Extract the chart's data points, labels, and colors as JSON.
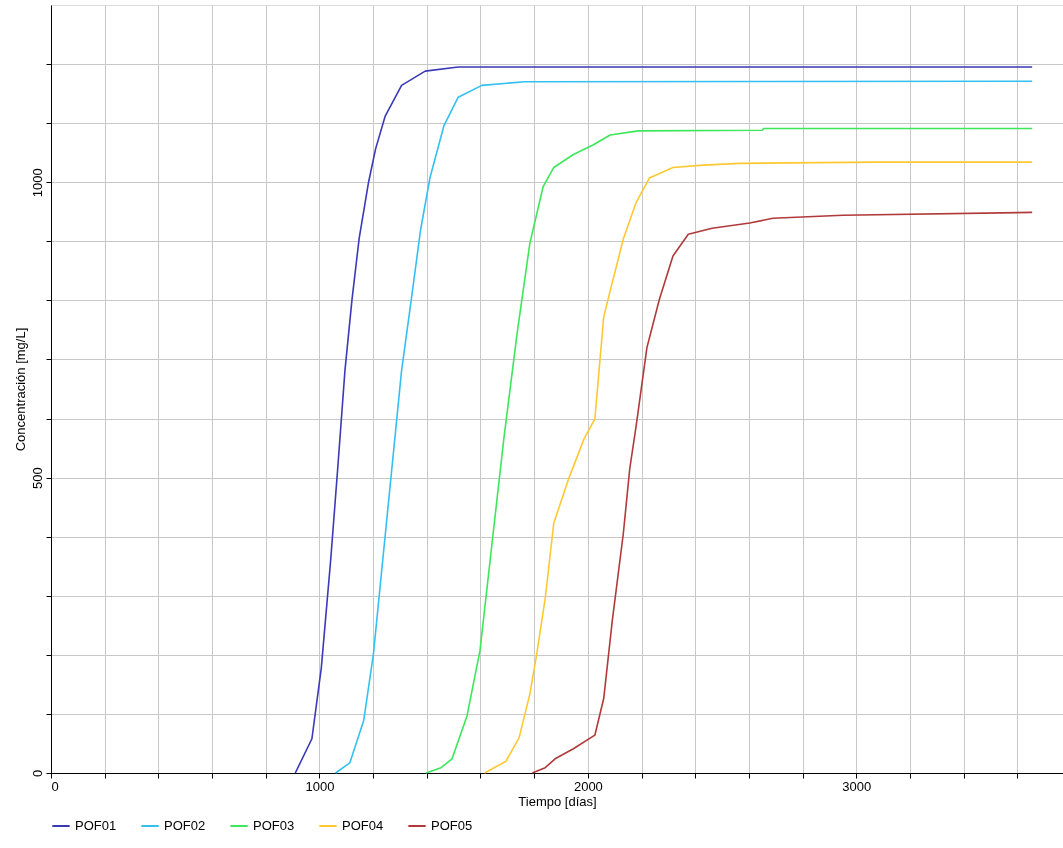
{
  "chart_data": {
    "type": "line",
    "xlabel": "Tiempo  [días]",
    "ylabel": "Concentración [mg/L]",
    "xlim": [
      0,
      3770
    ],
    "ylim": [
      0,
      1300
    ],
    "xticks": [
      0,
      {
        "value": 200,
        "label": null
      },
      {
        "value": 400,
        "label": null
      },
      {
        "value": 600,
        "label": null
      },
      {
        "value": 800,
        "label": null
      },
      1000,
      {
        "value": 1200,
        "label": null
      },
      {
        "value": 1400,
        "label": null
      },
      {
        "value": 1600,
        "label": null
      },
      {
        "value": 1800,
        "label": null
      },
      2000,
      {
        "value": 2200,
        "label": null
      },
      {
        "value": 2400,
        "label": null
      },
      {
        "value": 2600,
        "label": null
      },
      {
        "value": 2800,
        "label": null
      },
      3000,
      {
        "value": 3200,
        "label": null
      },
      {
        "value": 3400,
        "label": null
      },
      {
        "value": 3600,
        "label": null
      }
    ],
    "yticks": [
      0,
      {
        "value": 100,
        "label": null
      },
      {
        "value": 200,
        "label": null
      },
      {
        "value": 300,
        "label": null
      },
      {
        "value": 400,
        "label": null
      },
      500,
      {
        "value": 600,
        "label": null
      },
      {
        "value": 700,
        "label": null
      },
      {
        "value": 800,
        "label": null
      },
      {
        "value": 900,
        "label": null
      },
      1000,
      {
        "value": 1100,
        "label": null
      },
      {
        "value": 1200,
        "label": null
      }
    ],
    "grid": true,
    "legend": "bottom",
    "marker": "none",
    "line_style": "solid",
    "series": [
      {
        "name": "POF01",
        "color": "#3a3ab8",
        "x": [
          910,
          972,
          1007,
          1042,
          1069,
          1095,
          1121,
          1148,
          1183,
          1209,
          1245,
          1306,
          1394,
          1517,
          3655
        ],
        "values": [
          0,
          58,
          178,
          361,
          521,
          681,
          800,
          905,
          1000,
          1056,
          1112,
          1164,
          1188,
          1195,
          1195
        ]
      },
      {
        "name": "POF02",
        "color": "#33c0f0",
        "x": [
          1060,
          1113,
          1165,
          1201,
          1236,
          1271,
          1306,
          1342,
          1377,
          1412,
          1464,
          1517,
          1605,
          1764,
          3655
        ],
        "values": [
          0,
          17,
          89,
          201,
          361,
          521,
          681,
          801,
          920,
          1008,
          1096,
          1144,
          1164,
          1170,
          1171
        ]
      },
      {
        "name": "POF03",
        "color": "#3de65a",
        "x": [
          1397,
          1453,
          1494,
          1550,
          1598,
          1647,
          1687,
          1736,
          1784,
          1833,
          1873,
          1946,
          2019,
          2083,
          2188,
          2650,
          2655,
          3655
        ],
        "values": [
          0,
          9,
          24,
          97,
          207,
          405,
          566,
          743,
          897,
          992,
          1025,
          1047,
          1063,
          1080,
          1087,
          1088,
          1091,
          1091
        ]
      },
      {
        "name": "POF04",
        "color": "#ffc833",
        "x": [
          1615,
          1695,
          1744,
          1784,
          1809,
          1841,
          1873,
          1930,
          1986,
          2026,
          2059,
          2083,
          2132,
          2180,
          2229,
          2317,
          2430,
          2566,
          3076,
          3655
        ],
        "values": [
          0,
          20,
          60,
          134,
          200,
          295,
          423,
          500,
          566,
          599,
          772,
          816,
          904,
          966,
          1007,
          1025,
          1029,
          1032,
          1034,
          1034
        ]
      },
      {
        "name": "POF05",
        "color": "#b03a3a",
        "x": [
          1793,
          1841,
          1878,
          1946,
          2026,
          2059,
          2091,
          2132,
          2156,
          2180,
          2220,
          2266,
          2317,
          2374,
          2463,
          2603,
          2689,
          2950,
          3655
        ],
        "values": [
          0,
          9,
          24,
          41,
          64,
          126,
          258,
          405,
          515,
          588,
          720,
          801,
          875,
          912,
          922,
          931,
          939,
          944,
          949
        ]
      }
    ]
  }
}
